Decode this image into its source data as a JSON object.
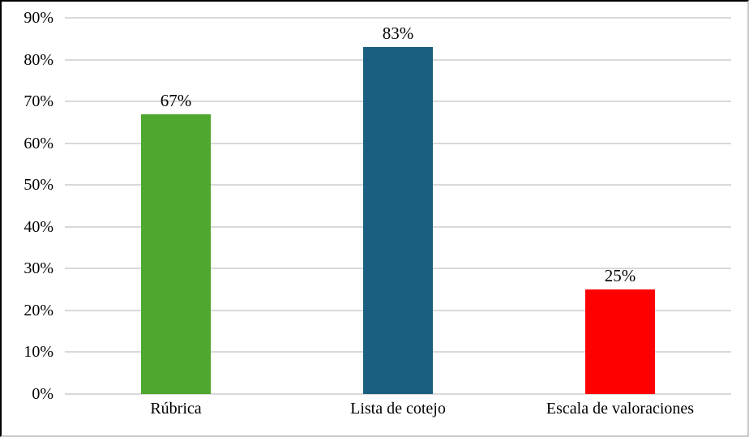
{
  "figure": {
    "background_color": "#FFFFFF",
    "frame_dark_color": "#000000",
    "frame_light_color": "#C9C9C9"
  },
  "chart_data": {
    "type": "bar",
    "title": "",
    "xlabel": "",
    "ylabel": "",
    "categories": [
      "Rúbrica",
      "Lista de cotejo",
      "Escala de valoraciones"
    ],
    "values": [
      67,
      83,
      25
    ],
    "value_labels": [
      "67%",
      "83%",
      "25%"
    ],
    "bar_colors": [
      "#4EA72E",
      "#1A5F80",
      "#FF0000"
    ],
    "ylim": [
      0,
      90
    ],
    "y_tick_step": 10,
    "y_tick_labels": [
      "0%",
      "10%",
      "20%",
      "30%",
      "40%",
      "50%",
      "60%",
      "70%",
      "80%",
      "90%"
    ],
    "grid": "horizontal",
    "gridline_color": "#D9D9D9",
    "legend_position": "none"
  }
}
